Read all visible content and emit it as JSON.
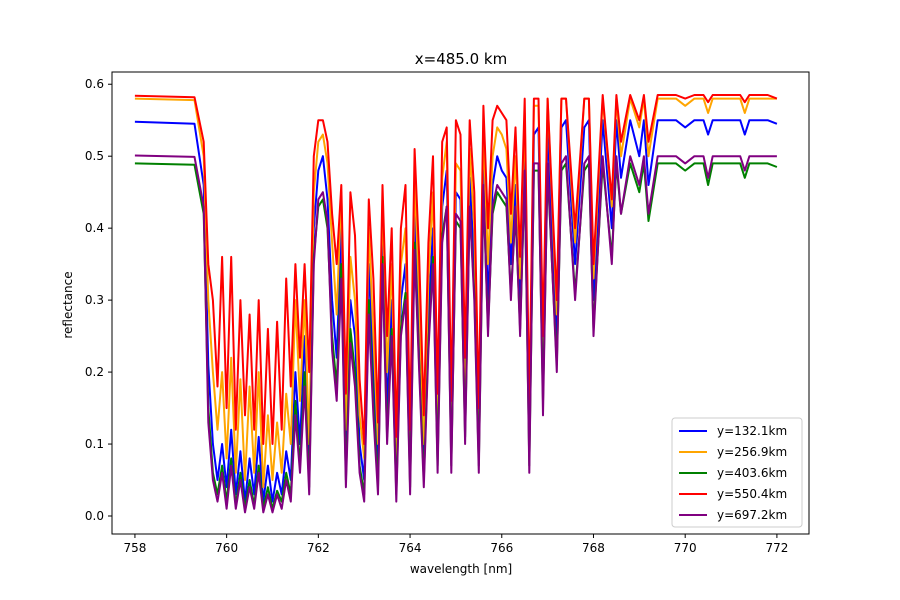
{
  "chart_data": {
    "type": "line",
    "title": "x=485.0 km",
    "xlabel": "wavelength [nm]",
    "ylabel": "reflectance",
    "xlim": [
      757.5,
      772.7
    ],
    "ylim": [
      -0.025,
      0.617
    ],
    "xticks": [
      758,
      760,
      762,
      764,
      766,
      768,
      770,
      772
    ],
    "xtick_labels": [
      "758",
      "760",
      "762",
      "764",
      "766",
      "768",
      "770",
      "772"
    ],
    "yticks": [
      0.0,
      0.1,
      0.2,
      0.3,
      0.4,
      0.5,
      0.6
    ],
    "ytick_labels": [
      "0.0",
      "0.1",
      "0.2",
      "0.3",
      "0.4",
      "0.5",
      "0.6"
    ],
    "grid": false,
    "legend_position": "lower-right",
    "series": [
      {
        "name": "y=132.1km",
        "color": "#0000ff",
        "continuum": 0.548,
        "x": [
          758.0,
          759.3,
          759.5,
          759.6,
          759.7,
          759.8,
          759.9,
          760.0,
          760.1,
          760.2,
          760.3,
          760.4,
          760.5,
          760.6,
          760.7,
          760.8,
          760.9,
          761.0,
          761.1,
          761.2,
          761.3,
          761.4,
          761.5,
          761.6,
          761.7,
          761.8,
          761.9,
          762.0,
          762.1,
          762.2,
          762.3,
          762.4,
          762.5,
          762.6,
          762.7,
          762.8,
          762.9,
          763.0,
          763.1,
          763.2,
          763.3,
          763.4,
          763.5,
          763.6,
          763.7,
          763.8,
          763.9,
          764.0,
          764.1,
          764.2,
          764.3,
          764.4,
          764.5,
          764.6,
          764.7,
          764.8,
          764.9,
          765.0,
          765.1,
          765.2,
          765.3,
          765.4,
          765.5,
          765.6,
          765.7,
          765.8,
          765.9,
          766.0,
          766.1,
          766.2,
          766.3,
          766.4,
          766.5,
          766.6,
          766.7,
          766.8,
          766.9,
          767.0,
          767.2,
          767.3,
          767.4,
          767.6,
          767.8,
          767.9,
          768.0,
          768.2,
          768.4,
          768.5,
          768.6,
          768.8,
          769.0,
          769.1,
          769.2,
          769.4,
          769.6,
          769.8,
          770.0,
          770.2,
          770.4,
          770.5,
          770.6,
          770.8,
          771.0,
          771.2,
          771.3,
          771.4,
          771.6,
          771.8,
          772.0
        ],
        "y": [
          0.548,
          0.545,
          0.46,
          0.21,
          0.1,
          0.05,
          0.1,
          0.04,
          0.12,
          0.03,
          0.09,
          0.02,
          0.08,
          0.03,
          0.11,
          0.02,
          0.07,
          0.02,
          0.06,
          0.03,
          0.09,
          0.05,
          0.2,
          0.1,
          0.25,
          0.06,
          0.4,
          0.48,
          0.5,
          0.44,
          0.3,
          0.22,
          0.4,
          0.08,
          0.3,
          0.25,
          0.1,
          0.05,
          0.35,
          0.2,
          0.06,
          0.4,
          0.15,
          0.3,
          0.05,
          0.3,
          0.35,
          0.06,
          0.42,
          0.25,
          0.08,
          0.28,
          0.4,
          0.1,
          0.43,
          0.48,
          0.1,
          0.45,
          0.44,
          0.15,
          0.47,
          0.35,
          0.1,
          0.5,
          0.3,
          0.46,
          0.5,
          0.48,
          0.47,
          0.35,
          0.46,
          0.3,
          0.52,
          0.1,
          0.53,
          0.54,
          0.2,
          0.54,
          0.25,
          0.54,
          0.55,
          0.35,
          0.54,
          0.55,
          0.3,
          0.55,
          0.4,
          0.55,
          0.47,
          0.55,
          0.5,
          0.55,
          0.46,
          0.55,
          0.55,
          0.55,
          0.54,
          0.55,
          0.55,
          0.53,
          0.55,
          0.55,
          0.55,
          0.55,
          0.53,
          0.55,
          0.55,
          0.55,
          0.545
        ]
      },
      {
        "name": "y=256.9km",
        "color": "#ffa500",
        "continuum": 0.58,
        "x": [
          758.0,
          759.3,
          759.5,
          759.6,
          759.7,
          759.8,
          759.9,
          760.0,
          760.1,
          760.2,
          760.3,
          760.4,
          760.5,
          760.6,
          760.7,
          760.8,
          760.9,
          761.0,
          761.1,
          761.2,
          761.3,
          761.4,
          761.5,
          761.6,
          761.7,
          761.8,
          761.9,
          762.0,
          762.1,
          762.2,
          762.3,
          762.4,
          762.5,
          762.6,
          762.7,
          762.8,
          762.9,
          763.0,
          763.1,
          763.2,
          763.3,
          763.4,
          763.5,
          763.6,
          763.7,
          763.8,
          763.9,
          764.0,
          764.1,
          764.2,
          764.3,
          764.4,
          764.5,
          764.6,
          764.7,
          764.8,
          764.9,
          765.0,
          765.1,
          765.2,
          765.3,
          765.4,
          765.5,
          765.6,
          765.7,
          765.8,
          765.9,
          766.0,
          766.1,
          766.2,
          766.3,
          766.4,
          766.5,
          766.6,
          766.7,
          766.8,
          766.9,
          767.0,
          767.2,
          767.3,
          767.4,
          767.6,
          767.8,
          767.9,
          768.0,
          768.2,
          768.4,
          768.5,
          768.6,
          768.8,
          769.0,
          769.1,
          769.2,
          769.4,
          769.6,
          769.8,
          770.0,
          770.2,
          770.4,
          770.5,
          770.6,
          770.8,
          771.0,
          771.2,
          771.3,
          771.4,
          771.6,
          771.8,
          772.0
        ],
        "y": [
          0.58,
          0.578,
          0.5,
          0.3,
          0.2,
          0.12,
          0.2,
          0.08,
          0.22,
          0.06,
          0.19,
          0.05,
          0.18,
          0.06,
          0.2,
          0.04,
          0.14,
          0.05,
          0.13,
          0.06,
          0.17,
          0.1,
          0.3,
          0.16,
          0.3,
          0.1,
          0.45,
          0.52,
          0.53,
          0.49,
          0.38,
          0.28,
          0.45,
          0.12,
          0.36,
          0.3,
          0.14,
          0.08,
          0.4,
          0.25,
          0.1,
          0.44,
          0.2,
          0.35,
          0.08,
          0.35,
          0.4,
          0.09,
          0.47,
          0.3,
          0.1,
          0.33,
          0.45,
          0.13,
          0.47,
          0.52,
          0.12,
          0.49,
          0.48,
          0.18,
          0.51,
          0.4,
          0.12,
          0.54,
          0.35,
          0.5,
          0.54,
          0.53,
          0.51,
          0.38,
          0.5,
          0.33,
          0.56,
          0.12,
          0.57,
          0.57,
          0.22,
          0.58,
          0.28,
          0.58,
          0.58,
          0.38,
          0.58,
          0.58,
          0.33,
          0.58,
          0.43,
          0.58,
          0.5,
          0.58,
          0.54,
          0.58,
          0.5,
          0.58,
          0.58,
          0.58,
          0.57,
          0.58,
          0.58,
          0.56,
          0.58,
          0.58,
          0.58,
          0.58,
          0.56,
          0.58,
          0.58,
          0.58,
          0.58
        ]
      },
      {
        "name": "y=403.6km",
        "color": "#008000",
        "continuum": 0.49,
        "x": [
          758.0,
          759.3,
          759.5,
          759.6,
          759.7,
          759.8,
          759.9,
          760.0,
          760.1,
          760.2,
          760.3,
          760.4,
          760.5,
          760.6,
          760.7,
          760.8,
          760.9,
          761.0,
          761.1,
          761.2,
          761.3,
          761.4,
          761.5,
          761.6,
          761.7,
          761.8,
          761.9,
          762.0,
          762.1,
          762.2,
          762.3,
          762.4,
          762.5,
          762.6,
          762.7,
          762.8,
          762.9,
          763.0,
          763.1,
          763.2,
          763.3,
          763.4,
          763.5,
          763.6,
          763.7,
          763.8,
          763.9,
          764.0,
          764.1,
          764.2,
          764.3,
          764.4,
          764.5,
          764.6,
          764.7,
          764.8,
          764.9,
          765.0,
          765.1,
          765.2,
          765.3,
          765.4,
          765.5,
          765.6,
          765.7,
          765.8,
          765.9,
          766.0,
          766.1,
          766.2,
          766.3,
          766.4,
          766.5,
          766.6,
          766.7,
          766.8,
          766.9,
          767.0,
          767.2,
          767.3,
          767.4,
          767.6,
          767.8,
          767.9,
          768.0,
          768.2,
          768.4,
          768.5,
          768.6,
          768.8,
          769.0,
          769.1,
          769.2,
          769.4,
          769.6,
          769.8,
          770.0,
          770.2,
          770.4,
          770.5,
          770.6,
          770.8,
          771.0,
          771.2,
          771.3,
          771.4,
          771.6,
          771.8,
          772.0
        ],
        "y": [
          0.49,
          0.488,
          0.42,
          0.15,
          0.06,
          0.03,
          0.07,
          0.02,
          0.08,
          0.015,
          0.06,
          0.01,
          0.05,
          0.015,
          0.07,
          0.01,
          0.04,
          0.01,
          0.035,
          0.02,
          0.06,
          0.03,
          0.16,
          0.07,
          0.2,
          0.04,
          0.36,
          0.43,
          0.44,
          0.4,
          0.25,
          0.18,
          0.35,
          0.05,
          0.26,
          0.2,
          0.07,
          0.03,
          0.3,
          0.16,
          0.04,
          0.36,
          0.11,
          0.26,
          0.03,
          0.26,
          0.31,
          0.04,
          0.38,
          0.21,
          0.05,
          0.24,
          0.36,
          0.07,
          0.39,
          0.43,
          0.07,
          0.41,
          0.4,
          0.11,
          0.43,
          0.31,
          0.07,
          0.45,
          0.26,
          0.42,
          0.45,
          0.44,
          0.43,
          0.31,
          0.42,
          0.26,
          0.47,
          0.07,
          0.48,
          0.48,
          0.16,
          0.48,
          0.21,
          0.48,
          0.49,
          0.31,
          0.48,
          0.49,
          0.26,
          0.49,
          0.36,
          0.49,
          0.42,
          0.49,
          0.45,
          0.49,
          0.41,
          0.49,
          0.49,
          0.49,
          0.48,
          0.49,
          0.49,
          0.46,
          0.49,
          0.49,
          0.49,
          0.49,
          0.47,
          0.49,
          0.49,
          0.49,
          0.485
        ]
      },
      {
        "name": "y=550.4km",
        "color": "#ff0000",
        "continuum": 0.584,
        "x": [
          758.0,
          759.3,
          759.5,
          759.6,
          759.7,
          759.8,
          759.9,
          760.0,
          760.1,
          760.2,
          760.3,
          760.4,
          760.5,
          760.6,
          760.7,
          760.8,
          760.9,
          761.0,
          761.1,
          761.2,
          761.3,
          761.4,
          761.5,
          761.6,
          761.7,
          761.8,
          761.9,
          762.0,
          762.1,
          762.2,
          762.3,
          762.4,
          762.5,
          762.6,
          762.7,
          762.8,
          762.9,
          763.0,
          763.1,
          763.2,
          763.3,
          763.4,
          763.5,
          763.6,
          763.7,
          763.8,
          763.9,
          764.0,
          764.1,
          764.2,
          764.3,
          764.4,
          764.5,
          764.6,
          764.7,
          764.8,
          764.9,
          765.0,
          765.1,
          765.2,
          765.3,
          765.4,
          765.5,
          765.6,
          765.7,
          765.8,
          765.9,
          766.0,
          766.1,
          766.2,
          766.3,
          766.4,
          766.5,
          766.6,
          766.7,
          766.8,
          766.9,
          767.0,
          767.2,
          767.3,
          767.4,
          767.6,
          767.8,
          767.9,
          768.0,
          768.2,
          768.4,
          768.5,
          768.6,
          768.8,
          769.0,
          769.1,
          769.2,
          769.4,
          769.6,
          769.8,
          770.0,
          770.2,
          770.4,
          770.5,
          770.6,
          770.8,
          771.0,
          771.2,
          771.3,
          771.4,
          771.6,
          771.8,
          772.0
        ],
        "y": [
          0.584,
          0.582,
          0.52,
          0.35,
          0.3,
          0.18,
          0.36,
          0.15,
          0.36,
          0.12,
          0.3,
          0.14,
          0.28,
          0.12,
          0.3,
          0.1,
          0.26,
          0.1,
          0.27,
          0.12,
          0.33,
          0.18,
          0.35,
          0.22,
          0.35,
          0.2,
          0.5,
          0.55,
          0.55,
          0.52,
          0.42,
          0.35,
          0.46,
          0.17,
          0.45,
          0.39,
          0.19,
          0.1,
          0.44,
          0.33,
          0.13,
          0.46,
          0.25,
          0.4,
          0.11,
          0.4,
          0.46,
          0.12,
          0.51,
          0.36,
          0.14,
          0.38,
          0.5,
          0.17,
          0.52,
          0.54,
          0.16,
          0.55,
          0.53,
          0.22,
          0.55,
          0.45,
          0.15,
          0.57,
          0.4,
          0.55,
          0.57,
          0.56,
          0.55,
          0.42,
          0.54,
          0.36,
          0.58,
          0.15,
          0.58,
          0.58,
          0.25,
          0.58,
          0.3,
          0.58,
          0.58,
          0.4,
          0.58,
          0.58,
          0.35,
          0.585,
          0.44,
          0.585,
          0.52,
          0.585,
          0.55,
          0.585,
          0.52,
          0.585,
          0.585,
          0.585,
          0.58,
          0.585,
          0.585,
          0.575,
          0.585,
          0.585,
          0.585,
          0.585,
          0.575,
          0.585,
          0.585,
          0.585,
          0.58
        ]
      },
      {
        "name": "y=697.2km",
        "color": "#800080",
        "continuum": 0.501,
        "x": [
          758.0,
          759.3,
          759.5,
          759.6,
          759.7,
          759.8,
          759.9,
          760.0,
          760.1,
          760.2,
          760.3,
          760.4,
          760.5,
          760.6,
          760.7,
          760.8,
          760.9,
          761.0,
          761.1,
          761.2,
          761.3,
          761.4,
          761.5,
          761.6,
          761.7,
          761.8,
          761.9,
          762.0,
          762.1,
          762.2,
          762.3,
          762.4,
          762.5,
          762.6,
          762.7,
          762.8,
          762.9,
          763.0,
          763.1,
          763.2,
          763.3,
          763.4,
          763.5,
          763.6,
          763.7,
          763.8,
          763.9,
          764.0,
          764.1,
          764.2,
          764.3,
          764.4,
          764.5,
          764.6,
          764.7,
          764.8,
          764.9,
          765.0,
          765.1,
          765.2,
          765.3,
          765.4,
          765.5,
          765.6,
          765.7,
          765.8,
          765.9,
          766.0,
          766.1,
          766.2,
          766.3,
          766.4,
          766.5,
          766.6,
          766.7,
          766.8,
          766.9,
          767.0,
          767.2,
          767.3,
          767.4,
          767.6,
          767.8,
          767.9,
          768.0,
          768.2,
          768.4,
          768.5,
          768.6,
          768.8,
          769.0,
          769.1,
          769.2,
          769.4,
          769.6,
          769.8,
          770.0,
          770.2,
          770.4,
          770.5,
          770.6,
          770.8,
          771.0,
          771.2,
          771.3,
          771.4,
          771.6,
          771.8,
          772.0
        ],
        "y": [
          0.501,
          0.499,
          0.43,
          0.13,
          0.05,
          0.02,
          0.06,
          0.01,
          0.07,
          0.01,
          0.05,
          0.005,
          0.04,
          0.01,
          0.06,
          0.005,
          0.03,
          0.005,
          0.03,
          0.01,
          0.05,
          0.02,
          0.14,
          0.06,
          0.18,
          0.03,
          0.35,
          0.44,
          0.45,
          0.41,
          0.23,
          0.16,
          0.33,
          0.04,
          0.24,
          0.18,
          0.06,
          0.02,
          0.28,
          0.14,
          0.03,
          0.35,
          0.1,
          0.25,
          0.02,
          0.25,
          0.3,
          0.03,
          0.37,
          0.2,
          0.04,
          0.23,
          0.35,
          0.06,
          0.38,
          0.43,
          0.06,
          0.42,
          0.41,
          0.1,
          0.43,
          0.3,
          0.06,
          0.46,
          0.25,
          0.43,
          0.46,
          0.45,
          0.44,
          0.3,
          0.43,
          0.25,
          0.48,
          0.06,
          0.49,
          0.49,
          0.14,
          0.49,
          0.2,
          0.49,
          0.5,
          0.3,
          0.49,
          0.5,
          0.25,
          0.5,
          0.35,
          0.5,
          0.42,
          0.5,
          0.46,
          0.5,
          0.42,
          0.5,
          0.5,
          0.5,
          0.49,
          0.5,
          0.5,
          0.47,
          0.5,
          0.5,
          0.5,
          0.5,
          0.48,
          0.5,
          0.5,
          0.5,
          0.5
        ]
      }
    ]
  }
}
